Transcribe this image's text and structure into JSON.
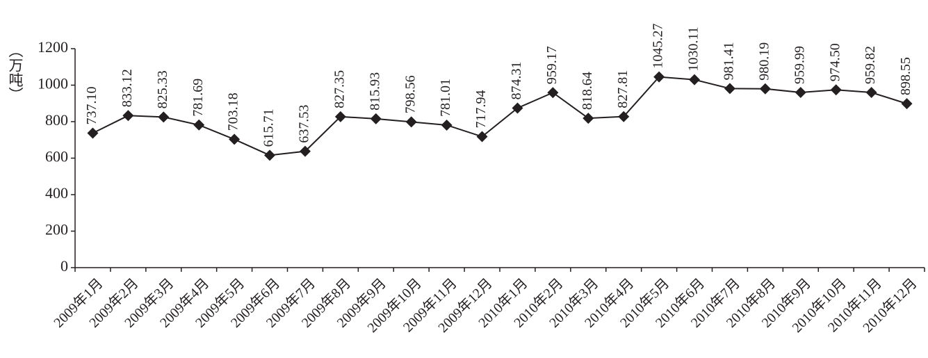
{
  "chart_data": {
    "type": "line",
    "y_label": "（万吨）",
    "categories": [
      "2009年1月",
      "2009年2月",
      "2009年3月",
      "2009年4月",
      "2009年5月",
      "2009年6月",
      "2009年7月",
      "2009年8月",
      "2009年9月",
      "2009年10月",
      "2009年11月",
      "2009年12月",
      "2010年1月",
      "2010年2月",
      "2010年3月",
      "2010年4月",
      "2010年5月",
      "2010年6月",
      "2010年7月",
      "2010年8月",
      "2010年9月",
      "2010年10月",
      "2010年11月",
      "2010年12月"
    ],
    "values": [
      737.1,
      833.12,
      825.33,
      781.69,
      703.18,
      615.71,
      637.53,
      827.35,
      815.93,
      798.56,
      781.01,
      717.94,
      874.31,
      959.17,
      818.64,
      827.81,
      1045.27,
      1030.11,
      981.41,
      980.19,
      959.99,
      974.5,
      959.82,
      898.55
    ],
    "value_labels": [
      "737.10",
      "833.12",
      "825.33",
      "781.69",
      "703.18",
      "615.71",
      "637.53",
      "827.35",
      "815.93",
      "798.56",
      "781.01",
      "717.94",
      "874.31",
      "959.17",
      "818.64",
      "827.81",
      "1045.27",
      "1030.11",
      "981.41",
      "980.19",
      "959.99",
      "974.50",
      "959.82",
      "898.55"
    ],
    "color": "#231f20",
    "ylim": [
      0,
      1200
    ],
    "yticks": [
      0,
      200,
      400,
      600,
      800,
      1000,
      1200
    ]
  }
}
